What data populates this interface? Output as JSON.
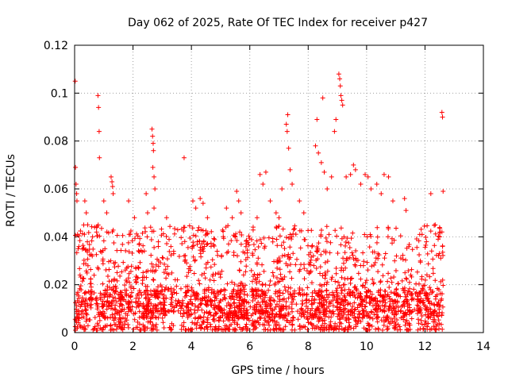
{
  "chart_data": {
    "type": "scatter",
    "title": "Day 062 of 2025, Rate Of TEC Index for receiver p427",
    "xlabel": "GPS time / hours",
    "ylabel": "ROTI / TECUs",
    "xlim": [
      0,
      14
    ],
    "ylim": [
      0,
      0.12
    ],
    "x_ticks": [
      0,
      2,
      4,
      6,
      8,
      10,
      12,
      14
    ],
    "x_tick_labels": [
      "0",
      "2",
      "4",
      "6",
      "8",
      "10",
      "12",
      "14"
    ],
    "y_ticks": [
      0,
      0.02,
      0.04,
      0.06,
      0.08,
      0.1,
      0.12
    ],
    "y_tick_labels": [
      "0",
      "0.02",
      "0.04",
      "0.06",
      "0.08",
      "0.1",
      "0.12"
    ],
    "grid": true,
    "marker": "+",
    "color": "#ff0000",
    "series": [
      {
        "name": "ROTI",
        "points": [
          [
            0.02,
            0.105
          ],
          [
            0.03,
            0.069
          ],
          [
            0.05,
            0.062
          ],
          [
            0.07,
            0.058
          ],
          [
            0.08,
            0.055
          ],
          [
            0.1,
            0.041
          ],
          [
            0.12,
            0.035
          ],
          [
            0.35,
            0.055
          ],
          [
            0.4,
            0.05
          ],
          [
            0.45,
            0.045
          ],
          [
            0.8,
            0.099
          ],
          [
            0.82,
            0.094
          ],
          [
            0.84,
            0.084
          ],
          [
            0.85,
            0.073
          ],
          [
            1.0,
            0.055
          ],
          [
            1.1,
            0.05
          ],
          [
            1.25,
            0.065
          ],
          [
            1.28,
            0.063
          ],
          [
            1.3,
            0.061
          ],
          [
            1.32,
            0.058
          ],
          [
            1.85,
            0.055
          ],
          [
            2.05,
            0.048
          ],
          [
            2.45,
            0.058
          ],
          [
            2.5,
            0.05
          ],
          [
            2.65,
            0.085
          ],
          [
            2.67,
            0.082
          ],
          [
            2.69,
            0.079
          ],
          [
            2.7,
            0.076
          ],
          [
            2.68,
            0.069
          ],
          [
            2.72,
            0.065
          ],
          [
            2.75,
            0.06
          ],
          [
            2.72,
            0.052
          ],
          [
            3.15,
            0.048
          ],
          [
            3.75,
            0.073
          ],
          [
            4.05,
            0.055
          ],
          [
            4.15,
            0.052
          ],
          [
            4.3,
            0.056
          ],
          [
            4.4,
            0.054
          ],
          [
            4.55,
            0.048
          ],
          [
            5.2,
            0.052
          ],
          [
            5.4,
            0.048
          ],
          [
            5.55,
            0.059
          ],
          [
            5.62,
            0.055
          ],
          [
            5.7,
            0.05
          ],
          [
            6.25,
            0.048
          ],
          [
            6.35,
            0.066
          ],
          [
            6.45,
            0.062
          ],
          [
            6.55,
            0.067
          ],
          [
            6.7,
            0.055
          ],
          [
            6.9,
            0.05
          ],
          [
            7.0,
            0.048
          ],
          [
            7.1,
            0.06
          ],
          [
            7.25,
            0.087
          ],
          [
            7.28,
            0.084
          ],
          [
            7.3,
            0.091
          ],
          [
            7.33,
            0.077
          ],
          [
            7.38,
            0.068
          ],
          [
            7.45,
            0.062
          ],
          [
            7.7,
            0.055
          ],
          [
            7.85,
            0.05
          ],
          [
            8.25,
            0.078
          ],
          [
            8.3,
            0.089
          ],
          [
            8.35,
            0.075
          ],
          [
            8.45,
            0.071
          ],
          [
            8.5,
            0.098
          ],
          [
            8.55,
            0.067
          ],
          [
            8.65,
            0.06
          ],
          [
            8.8,
            0.065
          ],
          [
            8.9,
            0.084
          ],
          [
            8.95,
            0.089
          ],
          [
            9.05,
            0.108
          ],
          [
            9.08,
            0.106
          ],
          [
            9.1,
            0.103
          ],
          [
            9.12,
            0.099
          ],
          [
            9.15,
            0.097
          ],
          [
            9.18,
            0.095
          ],
          [
            9.3,
            0.065
          ],
          [
            9.45,
            0.066
          ],
          [
            9.55,
            0.07
          ],
          [
            9.62,
            0.068
          ],
          [
            9.8,
            0.062
          ],
          [
            9.95,
            0.066
          ],
          [
            10.05,
            0.065
          ],
          [
            10.15,
            0.06
          ],
          [
            10.35,
            0.062
          ],
          [
            10.5,
            0.058
          ],
          [
            10.6,
            0.066
          ],
          [
            10.75,
            0.065
          ],
          [
            10.9,
            0.055
          ],
          [
            11.3,
            0.056
          ],
          [
            11.35,
            0.051
          ],
          [
            11.9,
            0.041
          ],
          [
            12.05,
            0.038
          ],
          [
            12.2,
            0.058
          ],
          [
            12.35,
            0.045
          ],
          [
            12.45,
            0.039
          ],
          [
            12.58,
            0.092
          ],
          [
            12.6,
            0.09
          ],
          [
            12.62,
            0.059
          ],
          [
            12.58,
            0.042
          ],
          [
            12.6,
            0.036
          ]
        ],
        "dense_band": {
          "x_range": [
            0.02,
            12.62
          ],
          "y_range": [
            0.001,
            0.045
          ],
          "y_mode": 0.012,
          "sample_count": 2600
        }
      }
    ]
  }
}
